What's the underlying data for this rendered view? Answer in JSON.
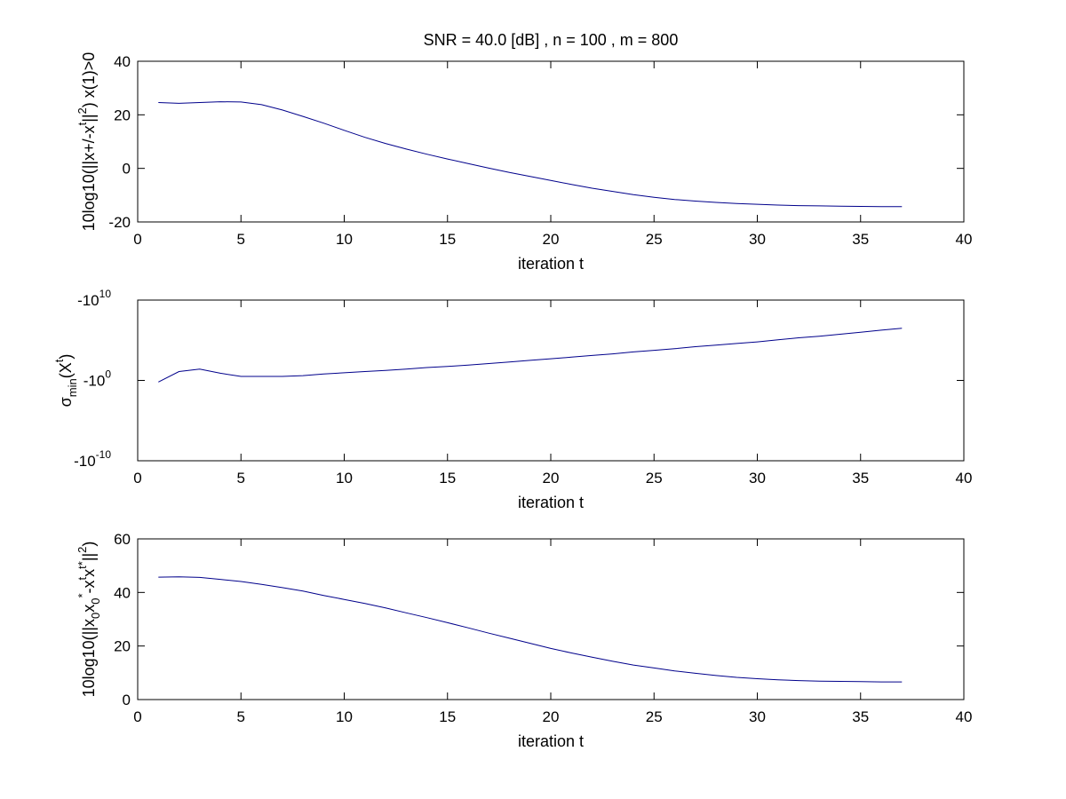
{
  "chart_data": [
    {
      "type": "line",
      "title": "SNR = 40.0 [dB] , n = 100 , m = 800",
      "xlabel": "iteration t",
      "ylabel": "10log10(||x+/-x^t||^2) x(1)>0",
      "ylabel_parts": {
        "main": "10log10(||x+/-x",
        "sup1": "t",
        "mid": "||",
        "sup2": "2",
        "tail": ") x(1)>0"
      },
      "xlim": [
        0,
        40
      ],
      "ylim": [
        -20,
        40
      ],
      "xticks": [
        "0",
        "5",
        "10",
        "15",
        "20",
        "25",
        "30",
        "35",
        "40"
      ],
      "yticks": [
        "-20",
        "0",
        "20",
        "40"
      ],
      "grid": false,
      "series": [
        {
          "x": [
            1,
            2,
            3,
            4,
            5,
            6,
            7,
            8,
            9,
            10,
            11,
            12,
            13,
            14,
            15,
            16,
            17,
            18,
            19,
            20,
            21,
            22,
            23,
            24,
            25,
            26,
            27,
            28,
            29,
            30,
            31,
            32,
            33,
            34,
            35,
            36,
            37
          ],
          "y": [
            24.6,
            24.3,
            24.6,
            24.9,
            24.8,
            23.8,
            21.8,
            19.4,
            16.9,
            14.2,
            11.6,
            9.3,
            7.2,
            5.3,
            3.5,
            1.8,
            0.1,
            -1.5,
            -3.0,
            -4.5,
            -6.0,
            -7.4,
            -8.6,
            -9.8,
            -10.8,
            -11.6,
            -12.2,
            -12.7,
            -13.1,
            -13.4,
            -13.7,
            -13.9,
            -14.0,
            -14.1,
            -14.2,
            -14.3,
            -14.3
          ]
        }
      ]
    },
    {
      "type": "line",
      "title": "",
      "xlabel": "iteration t",
      "ylabel": "σmin(X^t)",
      "ylabel_parts": {
        "main": "σ",
        "sub": "min",
        "paren": "(X",
        "sup": "t",
        "close": ")"
      },
      "xlim": [
        0,
        40
      ],
      "yscale": "symlog-negative",
      "ylim_exponent": [
        10,
        -10
      ],
      "xticks": [
        "0",
        "5",
        "10",
        "15",
        "20",
        "25",
        "30",
        "35",
        "40"
      ],
      "yticks": [
        {
          "base": "-10",
          "exp": "-10"
        },
        {
          "base": "-10",
          "exp": "0"
        },
        {
          "base": "-10",
          "exp": "10"
        }
      ],
      "grid": false,
      "series": [
        {
          "x": [
            1,
            2,
            3,
            4,
            5,
            6,
            7,
            8,
            9,
            10,
            11,
            12,
            13,
            14,
            15,
            16,
            17,
            18,
            19,
            20,
            21,
            22,
            23,
            24,
            25,
            26,
            27,
            28,
            29,
            30,
            31,
            32,
            33,
            34,
            35,
            36,
            37
          ],
          "log10_magnitude": [
            0.2,
            -1.1,
            -1.4,
            -0.9,
            -0.5,
            -0.5,
            -0.5,
            -0.6,
            -0.8,
            -0.95,
            -1.1,
            -1.25,
            -1.4,
            -1.6,
            -1.75,
            -1.9,
            -2.1,
            -2.3,
            -2.5,
            -2.7,
            -2.9,
            -3.1,
            -3.3,
            -3.55,
            -3.75,
            -3.95,
            -4.2,
            -4.4,
            -4.6,
            -4.8,
            -5.05,
            -5.3,
            -5.5,
            -5.75,
            -6.0,
            -6.25,
            -6.5
          ]
        }
      ]
    },
    {
      "type": "line",
      "title": "",
      "xlabel": "iteration t",
      "ylabel": "10log10(||x0x0*-x^t x^t*||^2)",
      "ylabel_parts": {
        "a": "10log10(||x",
        "sub1": "0",
        "b": "x",
        "sub2": "0",
        "sup1": "*",
        "c": "-x",
        "sup2": "t",
        "d": "x",
        "sup3": "t*",
        "e": "||",
        "sup4": "2",
        "f": ")"
      },
      "xlim": [
        0,
        40
      ],
      "ylim": [
        0,
        60
      ],
      "xticks": [
        "0",
        "5",
        "10",
        "15",
        "20",
        "25",
        "30",
        "35",
        "40"
      ],
      "yticks": [
        "0",
        "20",
        "40",
        "60"
      ],
      "grid": false,
      "series": [
        {
          "x": [
            1,
            2,
            3,
            4,
            5,
            6,
            7,
            8,
            9,
            10,
            11,
            12,
            13,
            14,
            15,
            16,
            17,
            18,
            19,
            20,
            21,
            22,
            23,
            24,
            25,
            26,
            27,
            28,
            29,
            30,
            31,
            32,
            33,
            34,
            35,
            36,
            37
          ],
          "y": [
            45.7,
            45.8,
            45.6,
            44.9,
            44.1,
            43.0,
            41.8,
            40.5,
            38.9,
            37.4,
            35.9,
            34.2,
            32.4,
            30.6,
            28.7,
            26.8,
            24.8,
            22.9,
            21.0,
            19.1,
            17.4,
            15.8,
            14.3,
            12.9,
            11.8,
            10.7,
            9.8,
            9.0,
            8.3,
            7.8,
            7.4,
            7.1,
            6.9,
            6.8,
            6.7,
            6.6,
            6.6
          ]
        }
      ]
    }
  ]
}
